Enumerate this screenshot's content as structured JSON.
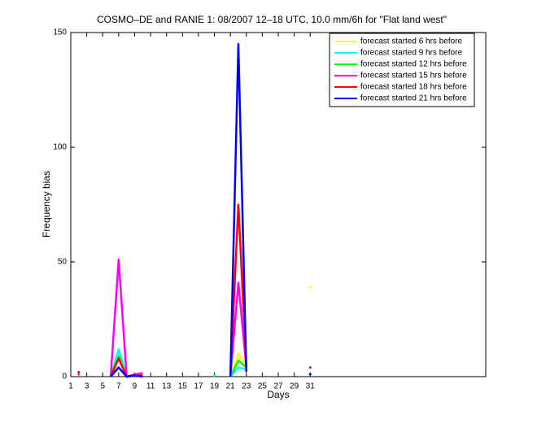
{
  "chart_data": {
    "type": "line",
    "title": "COSMO–DE and RANIE 1: 08/2007 12–18 UTC, 10.0 mm/6h for \"Flat land west\"",
    "xlabel": "Days",
    "ylabel": "Frequency bias",
    "x": [
      1,
      2,
      3,
      4,
      5,
      6,
      7,
      8,
      9,
      10,
      11,
      12,
      13,
      14,
      15,
      16,
      17,
      18,
      19,
      20,
      21,
      22,
      23,
      24,
      25,
      26,
      27,
      28,
      29,
      30,
      31
    ],
    "series": [
      {
        "name": "forecast started 6 hrs before",
        "color": "#ffff00",
        "values": [
          null,
          1,
          null,
          null,
          null,
          0,
          10,
          0,
          0.5,
          1,
          null,
          null,
          null,
          null,
          null,
          null,
          null,
          null,
          null,
          null,
          0,
          10,
          5,
          null,
          null,
          null,
          null,
          null,
          null,
          null,
          39
        ]
      },
      {
        "name": "forecast started 9 hrs before",
        "color": "#00ffff",
        "values": [
          null,
          null,
          null,
          null,
          null,
          0,
          12,
          0,
          0.5,
          0.5,
          null,
          null,
          null,
          null,
          null,
          null,
          null,
          null,
          0.5,
          null,
          0,
          4,
          3,
          null,
          null,
          null,
          null,
          null,
          null,
          null,
          null
        ]
      },
      {
        "name": "forecast started 12 hrs before",
        "color": "#00ff00",
        "values": [
          null,
          null,
          null,
          null,
          null,
          0,
          9,
          0,
          0.5,
          0.5,
          null,
          null,
          null,
          null,
          null,
          null,
          null,
          null,
          null,
          null,
          0,
          7,
          4,
          null,
          null,
          null,
          null,
          null,
          null,
          null,
          null
        ]
      },
      {
        "name": "forecast started 15 hrs before",
        "color": "#ff00ff",
        "values": [
          null,
          1,
          null,
          null,
          null,
          0,
          51,
          0,
          1,
          1.5,
          null,
          null,
          null,
          null,
          null,
          null,
          null,
          null,
          null,
          null,
          0,
          41,
          4,
          null,
          null,
          null,
          null,
          null,
          null,
          null,
          null
        ]
      },
      {
        "name": "forecast started 18 hrs before",
        "color": "#ff0000",
        "values": [
          null,
          2,
          null,
          null,
          null,
          0,
          8,
          0,
          0.5,
          0.5,
          null,
          null,
          null,
          null,
          null,
          null,
          null,
          null,
          null,
          null,
          0,
          75,
          4,
          null,
          null,
          null,
          null,
          null,
          null,
          null,
          4
        ]
      },
      {
        "name": "forecast started 21 hrs before",
        "color": "#0000ff",
        "values": [
          null,
          null,
          null,
          null,
          null,
          0,
          4,
          0,
          0.5,
          0,
          null,
          null,
          null,
          null,
          null,
          null,
          null,
          null,
          null,
          null,
          0,
          145,
          2,
          null,
          null,
          null,
          null,
          null,
          null,
          null,
          1
        ]
      }
    ],
    "xlim": [
      1,
      53
    ],
    "xticks": [
      1,
      3,
      5,
      7,
      9,
      11,
      13,
      15,
      17,
      19,
      21,
      23,
      25,
      27,
      29,
      31
    ],
    "ylim": [
      0,
      150
    ],
    "yticks": [
      0,
      50,
      100,
      150
    ],
    "grid": false,
    "legend": "northeast"
  }
}
